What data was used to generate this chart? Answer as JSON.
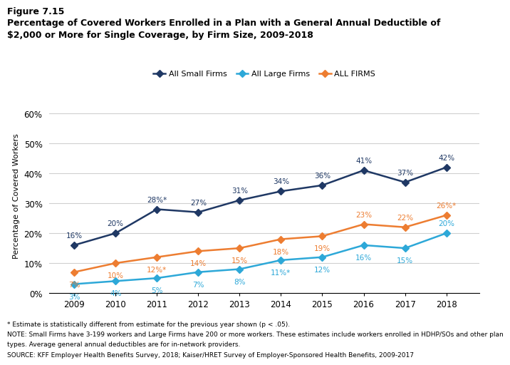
{
  "years": [
    2009,
    2010,
    2011,
    2012,
    2013,
    2014,
    2015,
    2016,
    2017,
    2018
  ],
  "small_firms": [
    16,
    20,
    28,
    27,
    31,
    34,
    36,
    41,
    37,
    42
  ],
  "large_firms": [
    3,
    4,
    5,
    7,
    8,
    11,
    12,
    16,
    15,
    20
  ],
  "all_firms": [
    7,
    10,
    12,
    14,
    15,
    18,
    19,
    23,
    22,
    26
  ],
  "small_firms_labels": [
    "16%",
    "20%",
    "28%*",
    "27%",
    "31%",
    "34%",
    "36%",
    "41%",
    "37%",
    "42%"
  ],
  "large_firms_labels": [
    "3%",
    "4%",
    "5%",
    "7%",
    "8%",
    "11%*",
    "12%",
    "16%",
    "15%",
    "20%"
  ],
  "all_firms_labels": [
    "7%",
    "10%",
    "12%*",
    "14%",
    "15%",
    "18%",
    "19%",
    "23%",
    "22%",
    "26%*"
  ],
  "small_color": "#1f3864",
  "large_color": "#2da8d8",
  "all_color": "#ed7d31",
  "title_line1": "Figure 7.15",
  "title_line2": "Percentage of Covered Workers Enrolled in a Plan with a General Annual Deductible of",
  "title_line3": "$2,000 or More for Single Coverage, by Firm Size, 2009-2018",
  "ylabel": "Percentage of Covered Workers",
  "ylim": [
    0,
    65
  ],
  "yticks": [
    0,
    10,
    20,
    30,
    40,
    50,
    60
  ],
  "ytick_labels": [
    "0%",
    "10%",
    "20%",
    "30%",
    "40%",
    "50%",
    "60%"
  ],
  "legend_labels": [
    "All Small Firms",
    "All Large Firms",
    "ALL FIRMS"
  ],
  "footnote1": "* Estimate is statistically different from estimate for the previous year shown (p < .05).",
  "footnote2": "NOTE: Small Firms have 3-199 workers and Large Firms have 200 or more workers. These estimates include workers enrolled in HDHP/SOs and other plan",
  "footnote3": "types. Average general annual deductibles are for in-network providers.",
  "footnote4": "SOURCE: KFF Employer Health Benefits Survey, 2018; Kaiser/HRET Survey of Employer-Sponsored Health Benefits, 2009-2017"
}
